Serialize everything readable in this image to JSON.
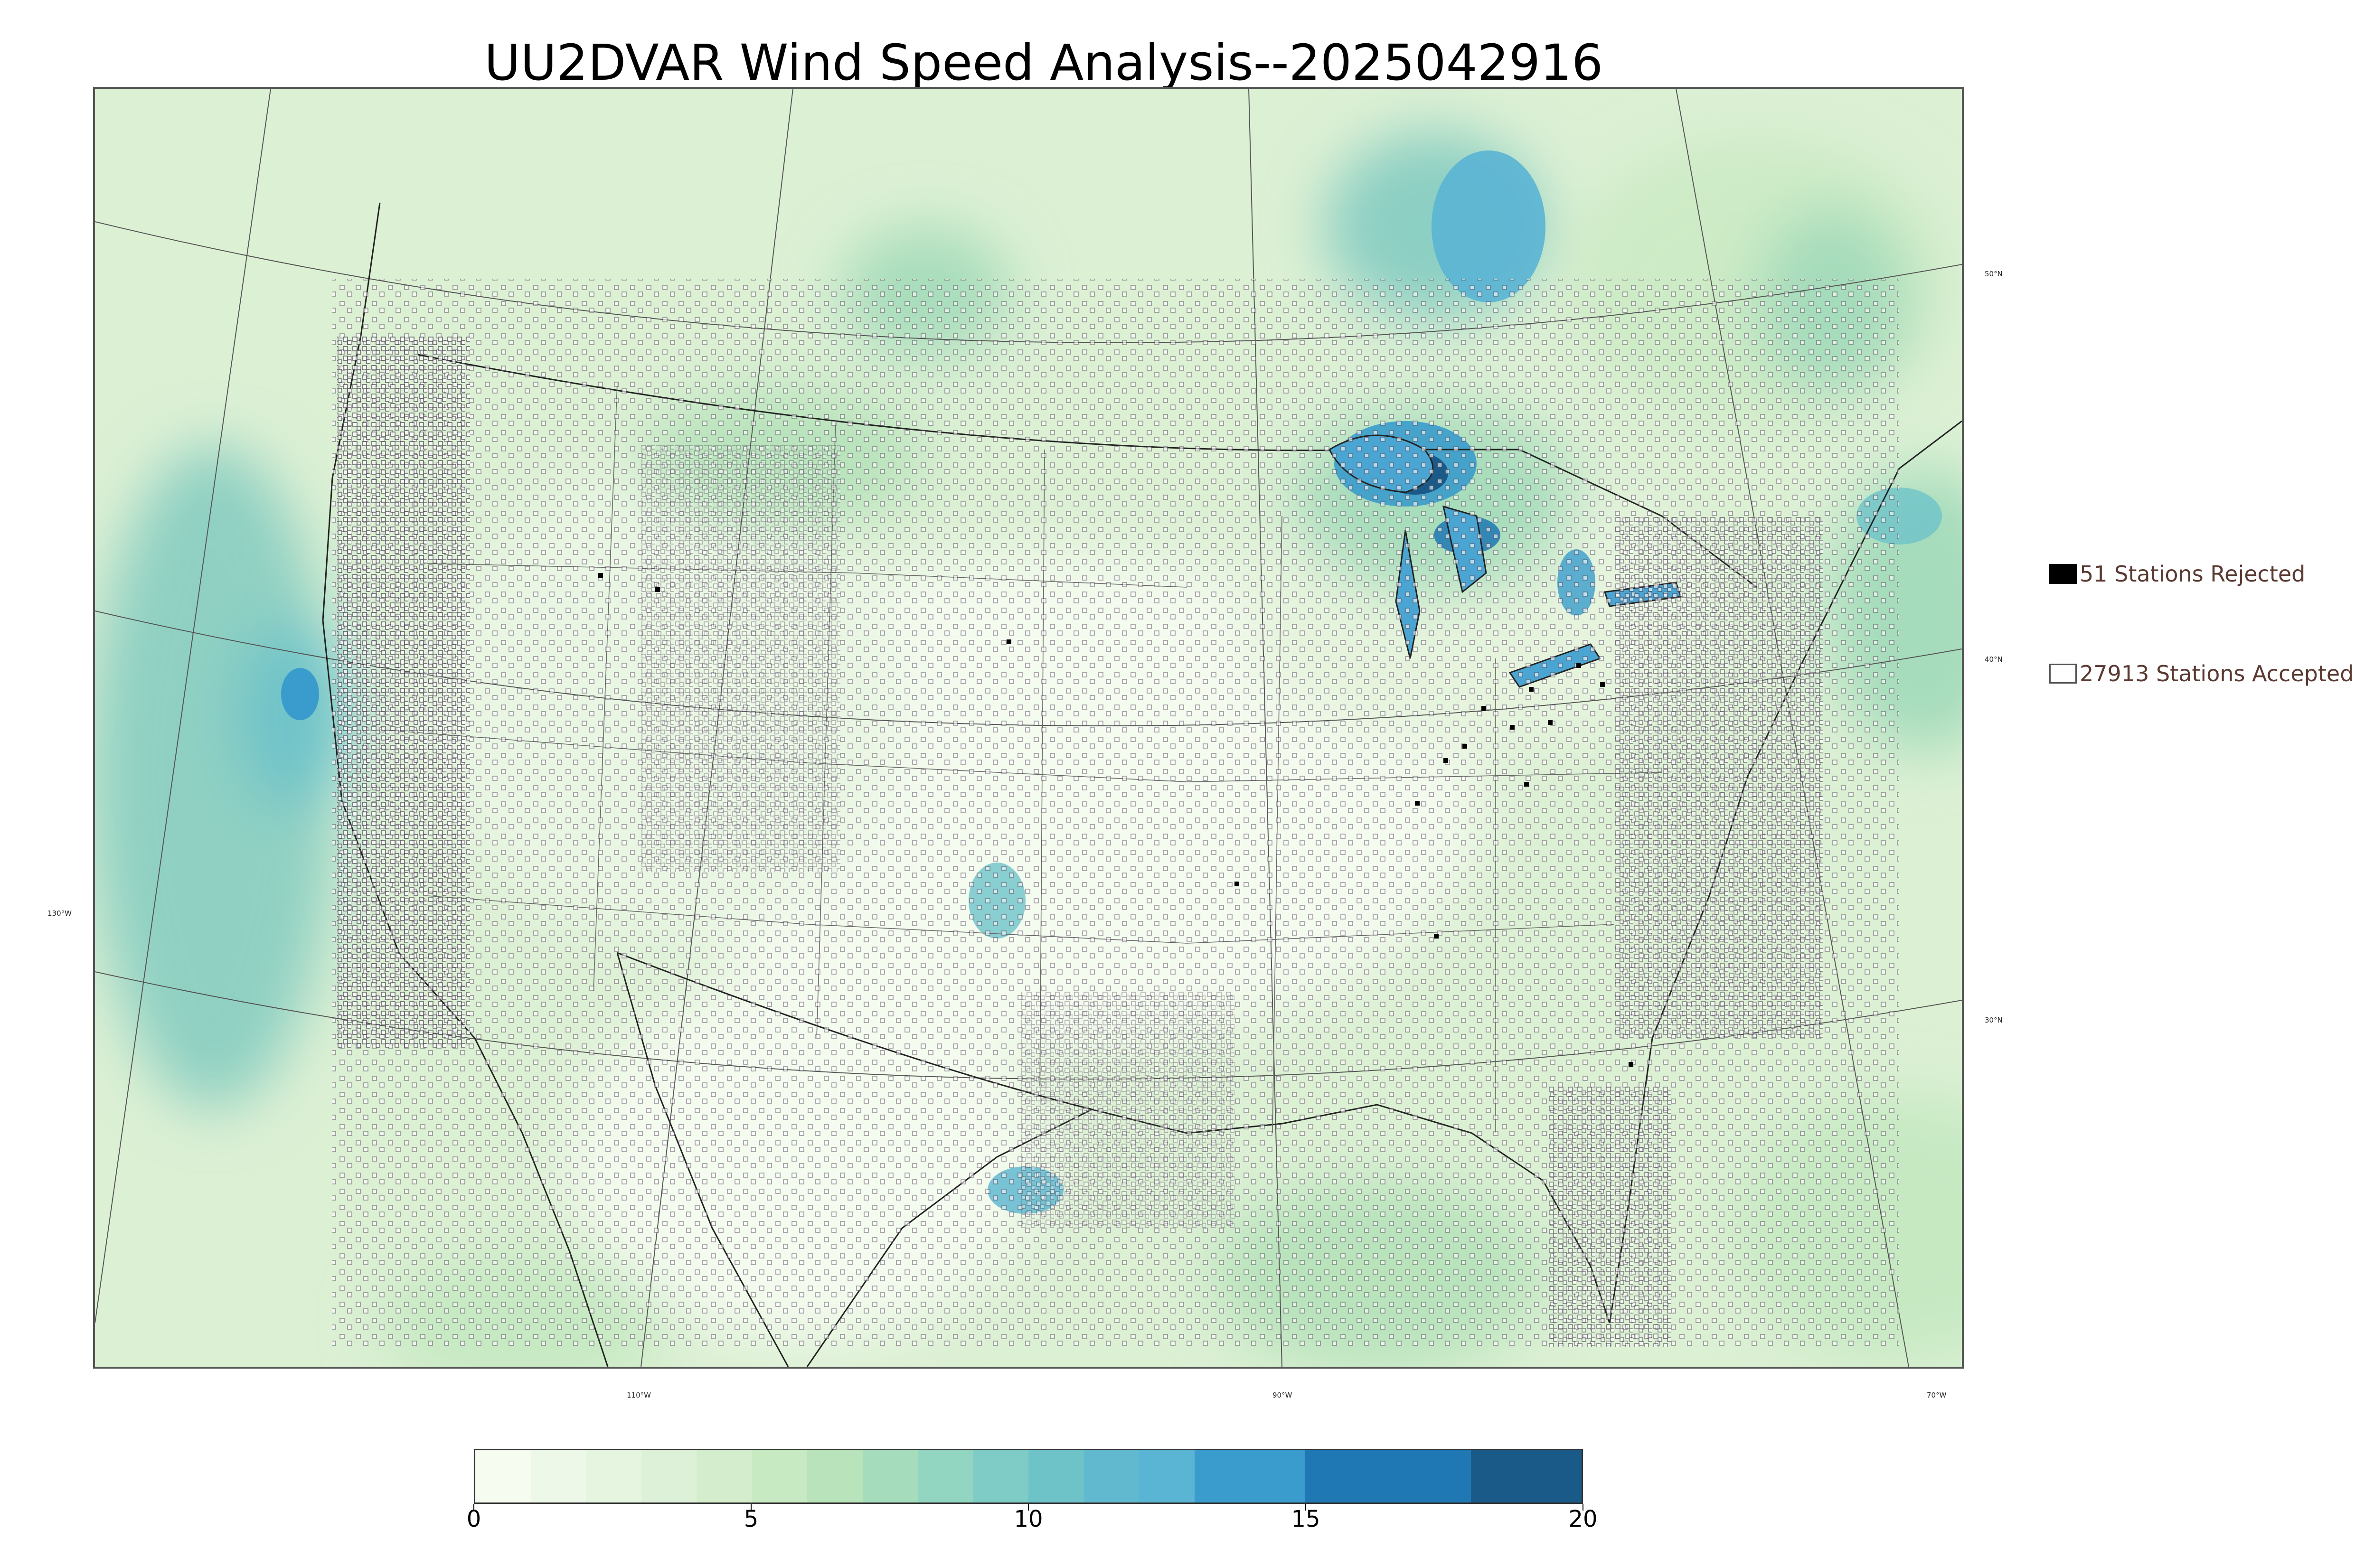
{
  "title": "UU2DVAR Wind Speed Analysis--2025042916",
  "latitude_labels": [
    "50°N",
    "40°N",
    "30°N"
  ],
  "longitude_labels": [
    "130°W",
    "110°W",
    "90°W",
    "70°W"
  ],
  "legend": {
    "rejected": {
      "label": "51 Stations Rejected",
      "color": "#000000"
    },
    "accepted": {
      "label": "27913 Stations Accepted",
      "color": "#ffffff"
    }
  },
  "colorbar": {
    "min": 0,
    "max": 20,
    "ticks": [
      "0",
      "5",
      "10",
      "15",
      "20"
    ],
    "bins": [
      {
        "from": 0,
        "to": 1,
        "color": "#f7fcf0"
      },
      {
        "from": 1,
        "to": 2,
        "color": "#eef8e8"
      },
      {
        "from": 2,
        "to": 3,
        "color": "#e6f5e0"
      },
      {
        "from": 3,
        "to": 4,
        "color": "#ddf1d8"
      },
      {
        "from": 4,
        "to": 5,
        "color": "#d4eecd"
      },
      {
        "from": 5,
        "to": 6,
        "color": "#c8eac2"
      },
      {
        "from": 6,
        "to": 7,
        "color": "#b8e3bb"
      },
      {
        "from": 7,
        "to": 8,
        "color": "#a5dcbb"
      },
      {
        "from": 8,
        "to": 9,
        "color": "#92d5c0"
      },
      {
        "from": 9,
        "to": 10,
        "color": "#7fccc6"
      },
      {
        "from": 10,
        "to": 11,
        "color": "#6ec3c9"
      },
      {
        "from": 11,
        "to": 12,
        "color": "#61b9d0"
      },
      {
        "from": 12,
        "to": 13,
        "color": "#5ab4d4"
      },
      {
        "from": 13,
        "to": 15,
        "color": "#3a9ccc"
      },
      {
        "from": 15,
        "to": 18,
        "color": "#1f78b4"
      },
      {
        "from": 18,
        "to": 20,
        "color": "#1a5a88"
      }
    ]
  }
}
